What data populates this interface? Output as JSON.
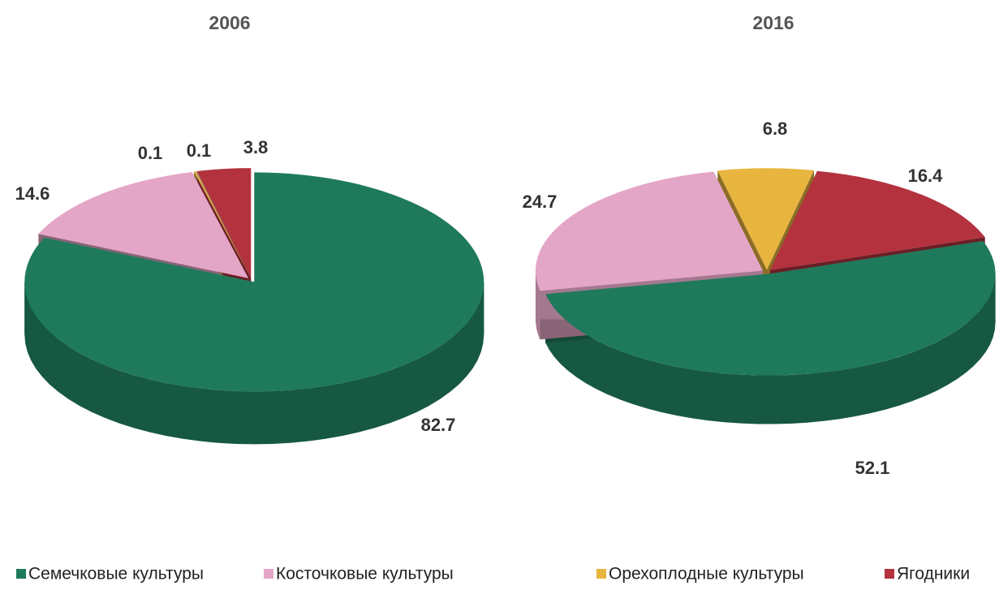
{
  "chart_data": [
    {
      "type": "pie",
      "title": "2006",
      "categories": [
        "Семечковые культуры",
        "Косточковые культуры",
        "Орехоплодные культуры",
        null,
        "Ягодники"
      ],
      "values": [
        82.7,
        14.6,
        0.1,
        0.1,
        3.8
      ],
      "colors": [
        "#1f7a5c",
        "#e4a6c6",
        "#e8b53f",
        "#c9a06e",
        "#b3323e"
      ]
    },
    {
      "type": "pie",
      "title": "2016",
      "categories": [
        "Семечковые культуры",
        "Косточковые культуры",
        "Орехоплодные культуры",
        "Ягодники"
      ],
      "values": [
        52.1,
        24.7,
        6.8,
        16.4
      ],
      "colors": [
        "#1f7a5c",
        "#e4a6c6",
        "#e8b53f",
        "#b3323e"
      ]
    }
  ]
}
